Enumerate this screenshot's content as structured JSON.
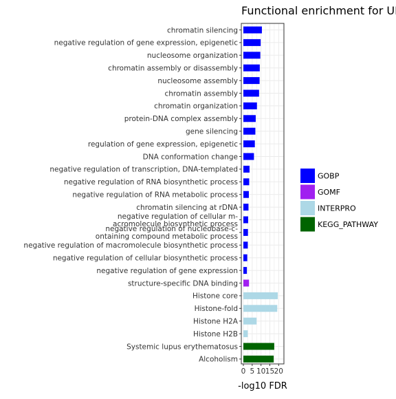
{
  "chart_data": {
    "type": "bar",
    "orientation": "horizontal",
    "title": "Functional enrichment for UF",
    "xlabel": "-log10 FDR",
    "ylabel": "",
    "xlim": [
      0,
      23
    ],
    "xticks": [
      0,
      5,
      10,
      15,
      20
    ],
    "grid": true,
    "legend_position": "right",
    "categories": [
      "chromatin silencing",
      "negative regulation of gene expression, epigenetic",
      "nucleosome organization",
      "chromatin assembly or disassembly",
      "nucleosome assembly",
      "chromatin assembly",
      "chromatin organization",
      "protein-DNA complex assembly",
      "gene silencing",
      "regulation of gene expression, epigenetic",
      "DNA conformation change",
      "negative regulation of transcription, DNA-templated",
      "negative regulation of RNA biosynthetic process",
      "negative regulation of RNA metabolic process",
      "chromatin silencing at rDNA",
      "negative regulation of cellular m-\nacromolecule biosynthetic process",
      "negative regulation of nucleobase-c-\nontaining compound metabolic process",
      "negative regulation of macromolecule biosynthetic process",
      "negative regulation of cellular biosynthetic process",
      "negative regulation of gene expression",
      "structure-specific DNA binding",
      "Histone core",
      "Histone-fold",
      "Histone H2A",
      "Histone H2B",
      "Systemic lupus erythematosus",
      "Alcoholism"
    ],
    "values": [
      10.5,
      9.8,
      9.6,
      9.3,
      9.2,
      8.9,
      7.7,
      7.0,
      6.8,
      6.5,
      6.0,
      3.5,
      3.3,
      3.1,
      2.9,
      2.7,
      2.6,
      2.5,
      2.2,
      2.0,
      3.2,
      19.5,
      19.2,
      7.5,
      2.5,
      17.5,
      17.2
    ],
    "groups": [
      "GOBP",
      "GOBP",
      "GOBP",
      "GOBP",
      "GOBP",
      "GOBP",
      "GOBP",
      "GOBP",
      "GOBP",
      "GOBP",
      "GOBP",
      "GOBP",
      "GOBP",
      "GOBP",
      "GOBP",
      "GOBP",
      "GOBP",
      "GOBP",
      "GOBP",
      "GOBP",
      "GOMF",
      "INTERPRO",
      "INTERPRO",
      "INTERPRO",
      "INTERPRO",
      "KEGG_PATHWAY",
      "KEGG_PATHWAY"
    ],
    "legend": [
      {
        "name": "GOBP",
        "color": "#0000ff"
      },
      {
        "name": "GOMF",
        "color": "#a020f0"
      },
      {
        "name": "INTERPRO",
        "color": "#add8e6"
      },
      {
        "name": "KEGG_PATHWAY",
        "color": "#006400"
      }
    ]
  }
}
